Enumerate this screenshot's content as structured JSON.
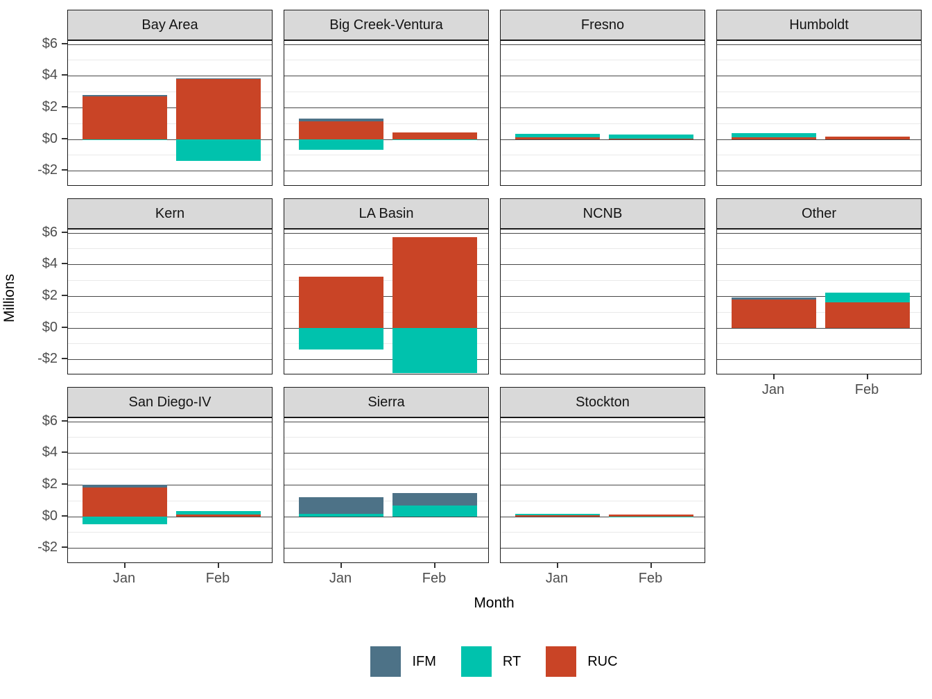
{
  "axes": {
    "y_title": "Millions",
    "x_title": "Month",
    "y_tick_labels": [
      "$6",
      "$4",
      "$2",
      "$0",
      "-$2"
    ],
    "x_tick_labels": [
      "Jan",
      "Feb"
    ]
  },
  "legend": {
    "items": [
      {
        "label": "IFM",
        "color": "#4D7287"
      },
      {
        "label": "RT",
        "color": "#00C2AD"
      },
      {
        "label": "RUC",
        "color": "#C94426"
      }
    ]
  },
  "chart_data": {
    "type": "bar",
    "stacked": true,
    "categories": [
      "Jan",
      "Feb"
    ],
    "stack_order_bottom_to_top": [
      "RUC",
      "RT",
      "IFM"
    ],
    "ylabel": "Millions",
    "xlabel": "Month",
    "ylim": [
      -3,
      6.2
    ],
    "ytick_values": [
      6,
      4,
      2,
      0,
      -2
    ],
    "minor_tick_values": [
      5,
      3,
      1,
      -1
    ],
    "units": "millions USD",
    "series_colors": {
      "IFM": "#4D7287",
      "RT": "#00C2AD",
      "RUC": "#C94426"
    },
    "facets": [
      {
        "title": "Bay Area",
        "row": 0,
        "col": 0,
        "x_axis": false,
        "values": {
          "Jan": {
            "IFM": 0.1,
            "RT": -0.07,
            "RUC": 2.7
          },
          "Feb": {
            "IFM": 0.05,
            "RT": -1.4,
            "RUC": 3.8
          }
        }
      },
      {
        "title": "Big Creek-Ventura",
        "row": 0,
        "col": 1,
        "x_axis": false,
        "values": {
          "Jan": {
            "IFM": 0.18,
            "RT": -0.7,
            "RUC": 1.12
          },
          "Feb": {
            "IFM": 0.0,
            "RT": -0.06,
            "RUC": 0.4
          }
        }
      },
      {
        "title": "Fresno",
        "row": 0,
        "col": 2,
        "x_axis": false,
        "values": {
          "Jan": {
            "IFM": 0.0,
            "RT": 0.25,
            "RUC": 0.1
          },
          "Feb": {
            "IFM": 0.0,
            "RT": 0.25,
            "RUC": 0.03
          }
        }
      },
      {
        "title": "Humboldt",
        "row": 0,
        "col": 3,
        "x_axis": false,
        "values": {
          "Jan": {
            "IFM": 0.0,
            "RT": 0.25,
            "RUC": 0.12
          },
          "Feb": {
            "IFM": 0.0,
            "RT": 0.0,
            "RUC": 0.15
          }
        }
      },
      {
        "title": "Kern",
        "row": 1,
        "col": 0,
        "x_axis": false,
        "values": {
          "Jan": {
            "IFM": 0.0,
            "RT": 0.0,
            "RUC": 0.0
          },
          "Feb": {
            "IFM": 0.0,
            "RT": 0.0,
            "RUC": 0.0
          }
        }
      },
      {
        "title": "LA Basin",
        "row": 1,
        "col": 1,
        "x_axis": false,
        "values": {
          "Jan": {
            "IFM": 0.0,
            "RT": -1.4,
            "RUC": 3.2
          },
          "Feb": {
            "IFM": 0.0,
            "RT": -2.85,
            "RUC": 5.7
          }
        }
      },
      {
        "title": "NCNB",
        "row": 1,
        "col": 2,
        "x_axis": false,
        "values": {
          "Jan": {
            "IFM": 0.0,
            "RT": 0.0,
            "RUC": 0.0
          },
          "Feb": {
            "IFM": 0.0,
            "RT": 0.0,
            "RUC": 0.0
          }
        }
      },
      {
        "title": "Other",
        "row": 1,
        "col": 3,
        "x_axis": true,
        "values": {
          "Jan": {
            "IFM": 0.12,
            "RT": 0.0,
            "RUC": 1.78
          },
          "Feb": {
            "IFM": 0.0,
            "RT": 0.62,
            "RUC": 1.58
          }
        }
      },
      {
        "title": "San Diego-IV",
        "row": 2,
        "col": 0,
        "x_axis": true,
        "values": {
          "Jan": {
            "IFM": 0.2,
            "RT": -0.5,
            "RUC": 1.8
          },
          "Feb": {
            "IFM": 0.0,
            "RT": 0.2,
            "RUC": 0.12
          }
        }
      },
      {
        "title": "Sierra",
        "row": 2,
        "col": 1,
        "x_axis": true,
        "values": {
          "Jan": {
            "IFM": 1.06,
            "RT": 0.15,
            "RUC": 0.0
          },
          "Feb": {
            "IFM": 0.78,
            "RT": 0.7,
            "RUC": 0.0
          }
        }
      },
      {
        "title": "Stockton",
        "row": 2,
        "col": 2,
        "x_axis": true,
        "values": {
          "Jan": {
            "IFM": 0.0,
            "RT": 0.08,
            "RUC": 0.06
          },
          "Feb": {
            "IFM": 0.0,
            "RT": -0.03,
            "RUC": 0.1
          }
        }
      }
    ]
  }
}
